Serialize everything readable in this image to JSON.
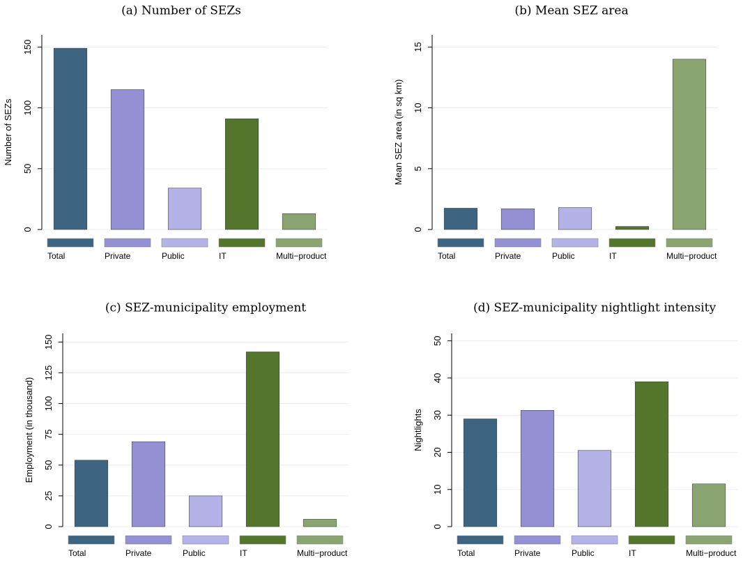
{
  "chart_data": [
    {
      "type": "bar",
      "title": "(a) Number of SEZs",
      "y_label": "Number of SEZs",
      "categories": [
        "Total",
        "Private",
        "Public",
        "IT",
        "Multi−product"
      ],
      "values": [
        149,
        115,
        34,
        91,
        13
      ],
      "colors": [
        "#3d6480",
        "#9590d4",
        "#b4b2e6",
        "#53752c",
        "#8ba572"
      ],
      "ylim": [
        0,
        160
      ],
      "yticks": [
        0,
        50,
        100,
        150
      ],
      "grid": true
    },
    {
      "type": "bar",
      "title": "(b) Mean SEZ area",
      "y_label": "Mean SEZ area (in sq km)",
      "categories": [
        "Total",
        "Private",
        "Public",
        "IT",
        "Multi−product"
      ],
      "values": [
        1.75,
        1.7,
        1.8,
        0.25,
        14
      ],
      "colors": [
        "#3d6480",
        "#9590d4",
        "#b4b2e6",
        "#53752c",
        "#8ba572"
      ],
      "ylim": [
        0,
        16
      ],
      "yticks": [
        0,
        5,
        10,
        15
      ],
      "grid": true
    },
    {
      "type": "bar",
      "title": "(c) SEZ-municipality employment",
      "y_label": "Employment (in thousand)",
      "categories": [
        "Total",
        "Private",
        "Public",
        "IT",
        "Multi−product"
      ],
      "values": [
        54,
        69,
        25,
        142,
        6
      ],
      "colors": [
        "#3d6480",
        "#9590d4",
        "#b4b2e6",
        "#53752c",
        "#8ba572"
      ],
      "ylim": [
        0,
        157
      ],
      "yticks": [
        0,
        25,
        50,
        75,
        100,
        125,
        150
      ],
      "grid": true
    },
    {
      "type": "bar",
      "title": "(d) SEZ-municipality nightlight intensity",
      "y_label": "Nightlights",
      "categories": [
        "Total",
        "Private",
        "Public",
        "IT",
        "Multi−product"
      ],
      "values": [
        29,
        31.3,
        20.5,
        39,
        11.5
      ],
      "colors": [
        "#3d6480",
        "#9590d4",
        "#b4b2e6",
        "#53752c",
        "#8ba572"
      ],
      "ylim": [
        0,
        52
      ],
      "yticks": [
        0,
        10,
        20,
        30,
        40,
        50
      ],
      "grid": true
    }
  ]
}
